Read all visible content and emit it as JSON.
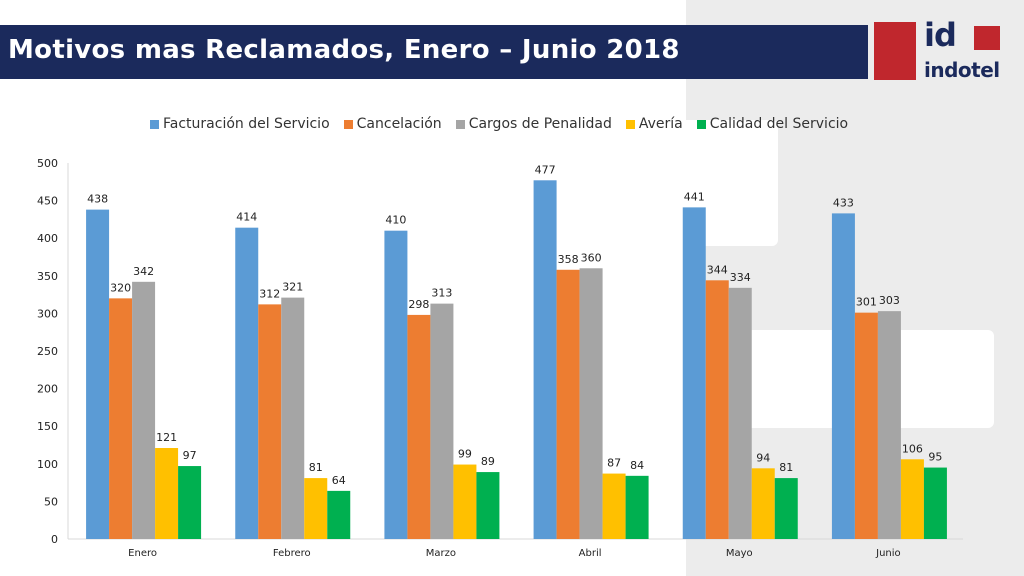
{
  "slide": {
    "title": "Motivos mas Reclamados, Enero – Junio 2018",
    "logo_text": "id",
    "logo_name": "indotel"
  },
  "chart_data": {
    "type": "bar",
    "categories": [
      "Enero",
      "Febrero",
      "Marzo",
      "Abril",
      "Mayo",
      "Junio"
    ],
    "series": [
      {
        "name": "Facturación del Servicio",
        "color": "#5b9bd5",
        "values": [
          438,
          414,
          410,
          477,
          441,
          433
        ]
      },
      {
        "name": "Cancelación",
        "color": "#ed7d31",
        "values": [
          320,
          312,
          298,
          358,
          344,
          301
        ]
      },
      {
        "name": "Cargos de Penalidad",
        "color": "#a5a5a5",
        "values": [
          342,
          321,
          313,
          360,
          334,
          303
        ]
      },
      {
        "name": "Avería",
        "color": "#ffc000",
        "values": [
          121,
          81,
          99,
          87,
          94,
          106
        ]
      },
      {
        "name": "Calidad del Servicio",
        "color": "#00b050",
        "values": [
          97,
          64,
          89,
          84,
          81,
          95
        ]
      }
    ],
    "ylim": [
      0,
      500
    ],
    "yticks": [
      0,
      50,
      100,
      150,
      200,
      250,
      300,
      350,
      400,
      450,
      500
    ],
    "data_labels": true,
    "legend": "top"
  }
}
